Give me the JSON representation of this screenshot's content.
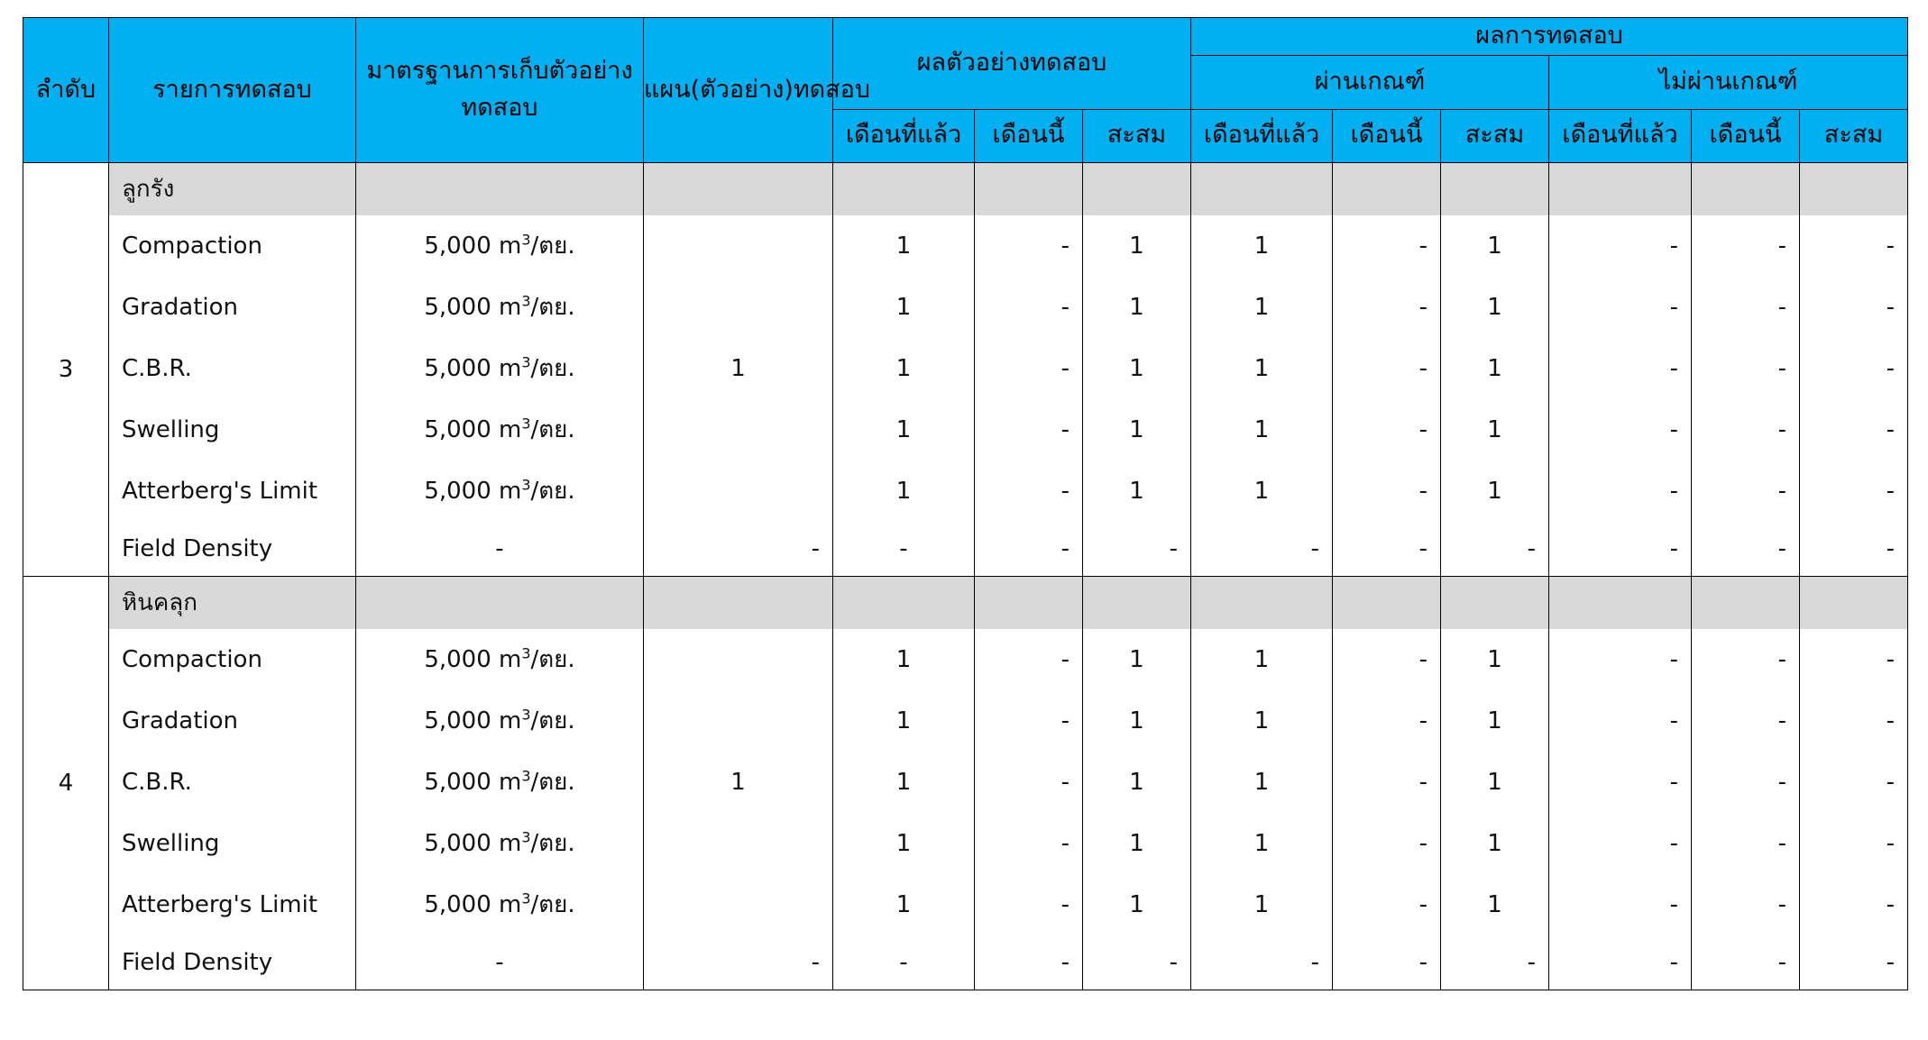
{
  "header": {
    "seq": "ลำดับ",
    "item": "รายการทดสอบ",
    "standard": "มาตรฐานการเก็บตัวอย่างทดสอบ",
    "plan": "แผน(ตัวอย่าง)ทดสอบ",
    "samples": "ผลตัวอย่างทดสอบ",
    "results": "ผลการทดสอบ",
    "pass": "ผ่านเกณฑ์",
    "fail": "ไม่ผ่านเกณฑ์",
    "last_month": "เดือนที่แล้ว",
    "this_month": "เดือนนี้",
    "cumulative": "สะสม"
  },
  "groups": [
    {
      "seq": "3",
      "name": "ลูกรัง",
      "plan": "1",
      "rows": [
        {
          "item": "Compaction",
          "std": "5,000 m",
          "sup": "3",
          "unit": "/ตย.",
          "v": [
            "1",
            "-",
            "1",
            "1",
            "-",
            "1",
            "-",
            "-",
            "-"
          ]
        },
        {
          "item": "Gradation",
          "std": "5,000 m",
          "sup": "3",
          "unit": "/ตย.",
          "v": [
            "1",
            "-",
            "1",
            "1",
            "-",
            "1",
            "-",
            "-",
            "-"
          ]
        },
        {
          "item": "C.B.R.",
          "std": "5,000 m",
          "sup": "3",
          "unit": "/ตย.",
          "v": [
            "1",
            "-",
            "1",
            "1",
            "-",
            "1",
            "-",
            "-",
            "-"
          ]
        },
        {
          "item": "Swelling",
          "std": "5,000 m",
          "sup": "3",
          "unit": "/ตย.",
          "v": [
            "1",
            "-",
            "1",
            "1",
            "-",
            "1",
            "-",
            "-",
            "-"
          ]
        },
        {
          "item": "Atterberg's Limit",
          "std": "5,000 m",
          "sup": "3",
          "unit": "/ตย.",
          "v": [
            "1",
            "-",
            "1",
            "1",
            "-",
            "1",
            "-",
            "-",
            "-"
          ]
        },
        {
          "item": "Field Density",
          "std": "-",
          "sup": "",
          "unit": "",
          "plan": "-",
          "v": [
            "-",
            "-",
            "-",
            "-",
            "-",
            "-",
            "-",
            "-",
            "-"
          ]
        }
      ]
    },
    {
      "seq": "4",
      "name": "หินคลุก",
      "plan": "1",
      "rows": [
        {
          "item": "Compaction",
          "std": "5,000 m",
          "sup": "3",
          "unit": "/ตย.",
          "v": [
            "1",
            "-",
            "1",
            "1",
            "-",
            "1",
            "-",
            "-",
            "-"
          ]
        },
        {
          "item": "Gradation",
          "std": "5,000 m",
          "sup": "3",
          "unit": "/ตย.",
          "v": [
            "1",
            "-",
            "1",
            "1",
            "-",
            "1",
            "-",
            "-",
            "-"
          ]
        },
        {
          "item": "C.B.R.",
          "std": "5,000 m",
          "sup": "3",
          "unit": "/ตย.",
          "v": [
            "1",
            "-",
            "1",
            "1",
            "-",
            "1",
            "-",
            "-",
            "-"
          ]
        },
        {
          "item": "Swelling",
          "std": "5,000 m",
          "sup": "3",
          "unit": "/ตย.",
          "v": [
            "1",
            "-",
            "1",
            "1",
            "-",
            "1",
            "-",
            "-",
            "-"
          ]
        },
        {
          "item": "Atterberg's Limit",
          "std": "5,000 m",
          "sup": "3",
          "unit": "/ตย.",
          "v": [
            "1",
            "-",
            "1",
            "1",
            "-",
            "1",
            "-",
            "-",
            "-"
          ]
        },
        {
          "item": "Field Density",
          "std": "-",
          "sup": "",
          "unit": "",
          "plan": "-",
          "v": [
            "-",
            "-",
            "-",
            "-",
            "-",
            "-",
            "-",
            "-",
            "-"
          ]
        }
      ]
    }
  ],
  "colors": {
    "header_bg": "#00b0f0",
    "group_bg": "#d9d9d9"
  }
}
